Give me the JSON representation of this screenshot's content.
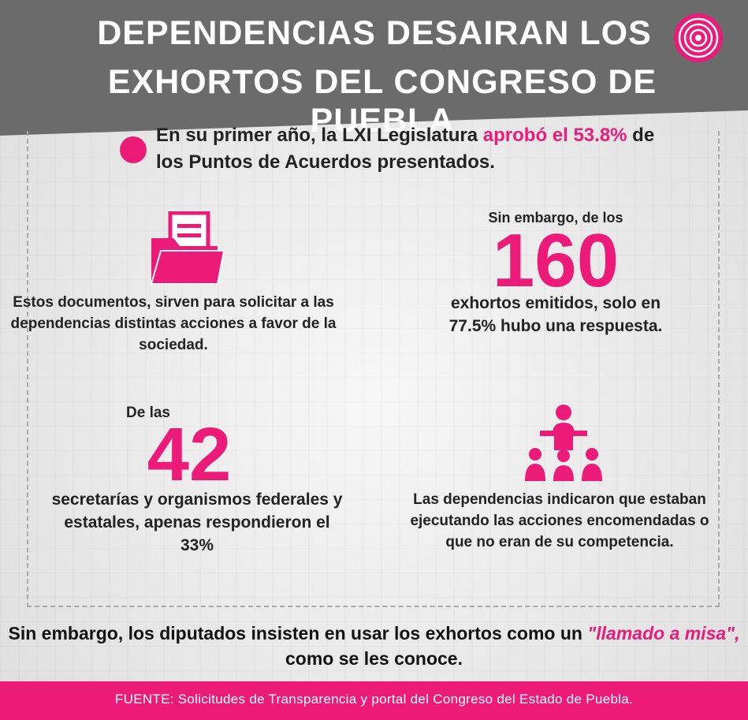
{
  "header": {
    "title_line1": "DEPENDENCIAS DESAIRAN LOS",
    "title_line2": "EXHORTOS DEL CONGRESO DE PUEBLA",
    "logo_icon": "concentric-circles-logo-icon"
  },
  "intro": {
    "text_before": "En su primer año, la LXI Legislatura ",
    "highlight": "aprobó el 53.8%",
    "text_after": " de los Puntos de Acuerdos presentados."
  },
  "block_documents": {
    "icon": "folder-icon",
    "text": "Estos documentos, sirven para solicitar a las dependencias distintas acciones a favor de la sociedad."
  },
  "block_160": {
    "lead": "Sin embargo, de los",
    "number": "160",
    "text": "exhortos emitidos, solo en 77.5% hubo una respuesta."
  },
  "block_42": {
    "lead": "De las",
    "number": "42",
    "text": "secretarías y organismos federales y estatales, apenas respondieron el 33%"
  },
  "block_dependencies": {
    "icon": "speaker-audience-icon",
    "text": "Las dependencias indicaron que estaban ejecutando las acciones encomendadas o que no eran de su competencia."
  },
  "closing": {
    "text_before": "Sin embargo, los diputados insisten en usar los exhortos como un ",
    "quote": "\"llamado a misa\",",
    "text_after": " como se les conoce."
  },
  "footer": {
    "source": "FUENTE: Solicitudes de Transparencia y portal del Congreso del Estado de Puebla."
  },
  "colors": {
    "accent": "#ec1b79",
    "header_bg": "#6b6b6b",
    "background": "#eeeeee"
  }
}
